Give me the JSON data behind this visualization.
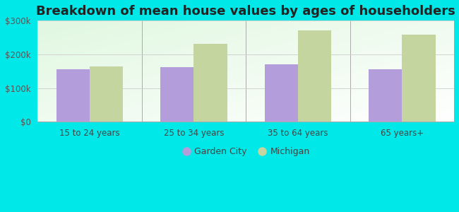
{
  "title": "Breakdown of mean house values by ages of householders",
  "categories": [
    "15 to 24 years",
    "25 to 34 years",
    "35 to 64 years",
    "65 years+"
  ],
  "garden_city_values": [
    155000,
    163000,
    170000,
    155000
  ],
  "michigan_values": [
    165000,
    232000,
    272000,
    258000
  ],
  "garden_city_color": "#b39ddb",
  "michigan_color": "#c5d5a0",
  "background_color": "#00e8e8",
  "ylim": [
    0,
    300000
  ],
  "yticks": [
    0,
    100000,
    200000,
    300000
  ],
  "ytick_labels": [
    "$0",
    "$100k",
    "$200k",
    "$300k"
  ],
  "legend_garden_city": "Garden City",
  "legend_michigan": "Michigan",
  "bar_width": 0.32,
  "title_fontsize": 13,
  "tick_fontsize": 8.5,
  "legend_fontsize": 9
}
